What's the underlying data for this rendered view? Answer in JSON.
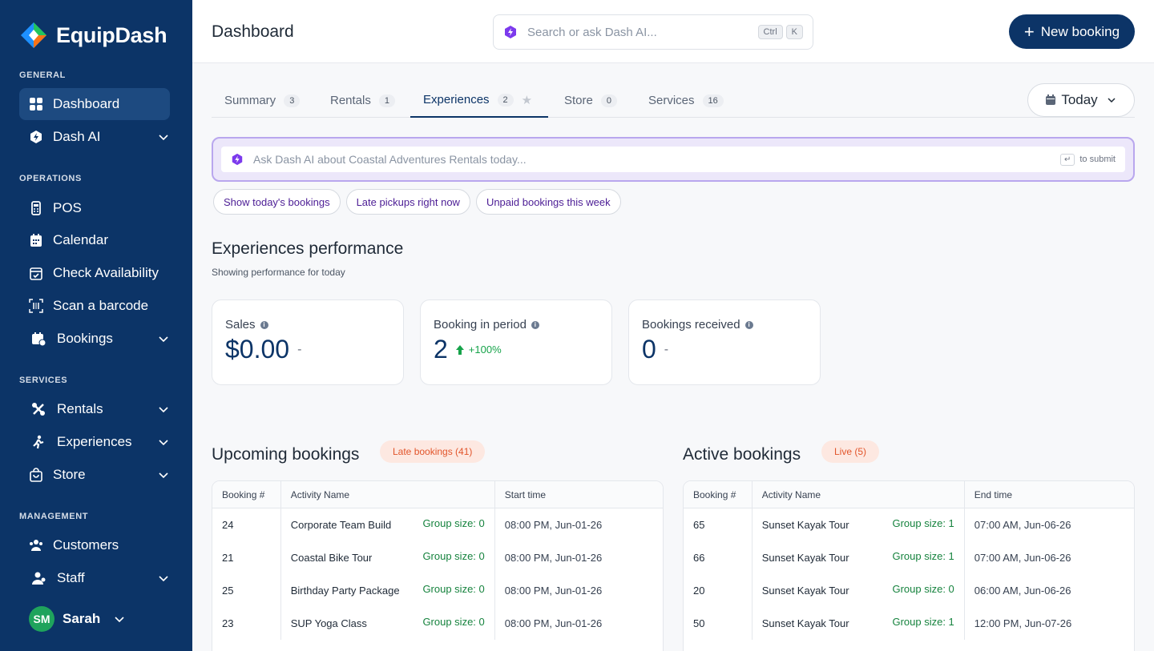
{
  "brand": {
    "name": "EquipDash"
  },
  "sidebar": {
    "sections": {
      "general": "GENERAL",
      "operations": "OPERATIONS",
      "services": "SERVICES",
      "management": "MANAGEMENT"
    },
    "items": {
      "dashboard": "Dashboard",
      "dash_ai": "Dash AI",
      "pos": "POS",
      "calendar": "Calendar",
      "check_availability": "Check Availability",
      "scan_barcode": "Scan a barcode",
      "bookings": "Bookings",
      "rentals": "Rentals",
      "experiences": "Experiences",
      "store": "Store",
      "customers": "Customers",
      "staff": "Staff"
    },
    "user": {
      "initials": "SM",
      "name": "Sarah"
    }
  },
  "header": {
    "title": "Dashboard",
    "search_placeholder": "Search or ask Dash AI...",
    "kbd_ctrl": "Ctrl",
    "kbd_k": "K",
    "new_booking": "New booking"
  },
  "tabs": [
    {
      "label": "Summary",
      "count": "3"
    },
    {
      "label": "Rentals",
      "count": "1"
    },
    {
      "label": "Experiences",
      "count": "2"
    },
    {
      "label": "Store",
      "count": "0"
    },
    {
      "label": "Services",
      "count": "16"
    }
  ],
  "active_tab": "Experiences",
  "date_filter": "Today",
  "ai": {
    "placeholder": "Ask Dash AI about Coastal Adventures Rentals today...",
    "enter_key": "↵",
    "submit_hint": "to submit",
    "chips": [
      "Show today's bookings",
      "Late pickups right now",
      "Unpaid bookings this week"
    ]
  },
  "performance": {
    "title": "Experiences performance",
    "subtitle": "Showing performance for today",
    "cards": [
      {
        "label": "Sales",
        "value": "$0.00",
        "change": "-"
      },
      {
        "label": "Booking in period",
        "value": "2",
        "change": "+100%"
      },
      {
        "label": "Bookings received",
        "value": "0",
        "change": "-"
      }
    ]
  },
  "upcoming": {
    "title": "Upcoming bookings",
    "badge": "Late bookings (41)",
    "columns": [
      "Booking #",
      "Activity Name",
      "Start time"
    ],
    "rows": [
      {
        "id": "24",
        "activity": "Corporate Team Build",
        "group": "Group size: 0",
        "time": "08:00 PM, Jun-01-26"
      },
      {
        "id": "21",
        "activity": "Coastal Bike Tour",
        "group": "Group size: 0",
        "time": "08:00 PM, Jun-01-26"
      },
      {
        "id": "25",
        "activity": "Birthday Party Package",
        "group": "Group size: 0",
        "time": "08:00 PM, Jun-01-26"
      },
      {
        "id": "23",
        "activity": "SUP Yoga Class",
        "group": "Group size: 0",
        "time": "08:00 PM, Jun-01-26"
      }
    ]
  },
  "active": {
    "title": "Active bookings",
    "badge": "Live (5)",
    "columns": [
      "Booking #",
      "Activity Name",
      "End time"
    ],
    "rows": [
      {
        "id": "65",
        "activity": "Sunset Kayak Tour",
        "group": "Group size: 1",
        "time": "07:00 AM, Jun-06-26"
      },
      {
        "id": "66",
        "activity": "Sunset Kayak Tour",
        "group": "Group size: 1",
        "time": "07:00 AM, Jun-06-26"
      },
      {
        "id": "20",
        "activity": "Sunset Kayak Tour",
        "group": "Group size: 0",
        "time": "06:00 AM, Jun-06-26"
      },
      {
        "id": "50",
        "activity": "Sunset Kayak Tour",
        "group": "Group size: 1",
        "time": "12:00 PM, Jun-07-26"
      }
    ]
  }
}
